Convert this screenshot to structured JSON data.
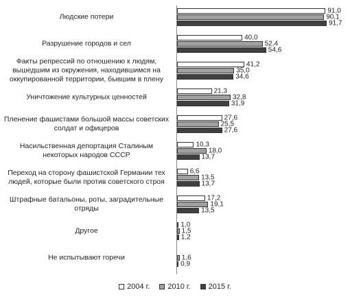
{
  "chart_data": {
    "type": "bar",
    "orientation": "horizontal",
    "categories": [
      "Людские потери",
      "Разрушение городов и сел",
      "Факты репрессий по отношению к людям, вышедшим из окружения, находившимся на оккупированной территории, бывшим в плену",
      "Уничтожение культурных ценностей",
      "Пленение фашистами большой массы советских солдат и офицеров",
      "Насильственная депортация Сталиным некоторых народов СССР",
      "Переход на сторону фашистской Германии тех людей, которые были против советского строя",
      "Штрафные батальоны, роты, заградительные отряды",
      "Другое",
      "Не испытывают горечи"
    ],
    "series": [
      {
        "name": "2004 г.",
        "color": "#ffffff",
        "values": [
          91.0,
          40.0,
          41.2,
          21.3,
          27.6,
          10.3,
          6.6,
          17.2,
          1.0,
          null
        ],
        "value_labels": [
          "91,0",
          "40,0",
          "41,2",
          "21,3",
          "27,6",
          "10,3",
          "6,6",
          "17,2",
          "1,0",
          null
        ]
      },
      {
        "name": "2010 г.",
        "color": "#a0a0a0",
        "values": [
          90.1,
          52.4,
          35.0,
          32.8,
          25.5,
          18.0,
          13.5,
          19.1,
          1.5,
          1.6
        ],
        "value_labels": [
          "90,1",
          "52,4",
          "35,0",
          "32,8",
          "25,5",
          "18,0",
          "13,5",
          "19,1",
          "1,5",
          "1,6"
        ]
      },
      {
        "name": "2015 г.",
        "color": "#404040",
        "values": [
          91.7,
          54.6,
          34.6,
          31.9,
          27.6,
          13.7,
          13.7,
          13.5,
          1.2,
          0.9
        ],
        "value_labels": [
          "91,7",
          "54,6",
          "34,6",
          "31,9",
          "27,6",
          "13,7",
          "13,7",
          "13,5",
          "1,2",
          "0,9"
        ]
      }
    ],
    "legend": "bottom"
  }
}
